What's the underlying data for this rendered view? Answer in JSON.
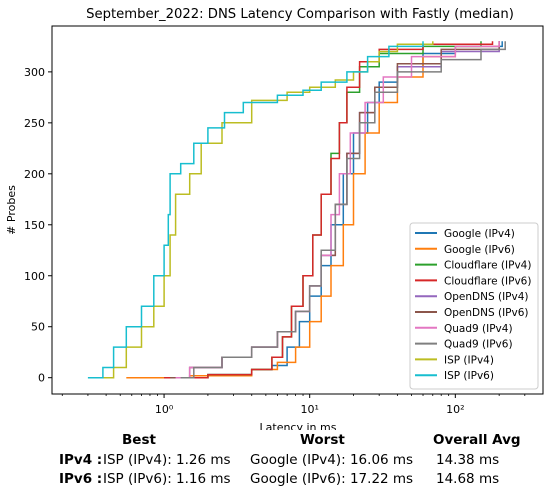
{
  "chart_data": {
    "type": "line",
    "title": "September_2022: DNS Latency Comparison with Fastly (median)",
    "xlabel": "Latency in ms",
    "ylabel": "# Probes",
    "xscale": "log",
    "xlim": [
      0.17,
      400
    ],
    "ylim": [
      -16,
      345
    ],
    "x_ticks": [
      {
        "value": 1,
        "label": "10⁰"
      },
      {
        "value": 10,
        "label": "10¹"
      },
      {
        "value": 100,
        "label": "10²"
      }
    ],
    "y_ticks": [
      0,
      50,
      100,
      150,
      200,
      250,
      300
    ],
    "grid": false,
    "legend_position": "lower right",
    "series": [
      {
        "name": "Google (IPv4)",
        "color": "#1f77b4",
        "points": [
          [
            1.2,
            0
          ],
          [
            2,
            3
          ],
          [
            4,
            8
          ],
          [
            5.5,
            12
          ],
          [
            7,
            30
          ],
          [
            8.5,
            55
          ],
          [
            10,
            80
          ],
          [
            12,
            110
          ],
          [
            14,
            150
          ],
          [
            17,
            200
          ],
          [
            20,
            240
          ],
          [
            25,
            270
          ],
          [
            30,
            290
          ],
          [
            40,
            305
          ],
          [
            60,
            318
          ],
          [
            100,
            325
          ],
          [
            210,
            330
          ]
        ]
      },
      {
        "name": "Google (IPv6)",
        "color": "#ff7f0e",
        "points": [
          [
            0.55,
            0
          ],
          [
            1.5,
            2
          ],
          [
            4,
            8
          ],
          [
            6,
            15
          ],
          [
            8,
            30
          ],
          [
            10,
            55
          ],
          [
            12,
            80
          ],
          [
            14,
            110
          ],
          [
            17,
            150
          ],
          [
            20,
            200
          ],
          [
            24,
            240
          ],
          [
            30,
            270
          ],
          [
            40,
            295
          ],
          [
            60,
            315
          ],
          [
            100,
            325
          ],
          [
            200,
            330
          ]
        ]
      },
      {
        "name": "Cloudflare (IPv4)",
        "color": "#2ca02c",
        "points": [
          [
            1,
            0
          ],
          [
            2,
            3
          ],
          [
            4,
            8
          ],
          [
            5.5,
            20
          ],
          [
            6.5,
            40
          ],
          [
            7.5,
            70
          ],
          [
            9,
            100
          ],
          [
            10.5,
            140
          ],
          [
            12,
            180
          ],
          [
            14,
            220
          ],
          [
            16,
            250
          ],
          [
            18,
            280
          ],
          [
            22,
            305
          ],
          [
            30,
            318
          ],
          [
            60,
            325
          ],
          [
            150,
            330
          ]
        ]
      },
      {
        "name": "Cloudflare (IPv6)",
        "color": "#d62728",
        "points": [
          [
            1,
            0
          ],
          [
            2,
            3
          ],
          [
            4,
            8
          ],
          [
            5.5,
            20
          ],
          [
            6.5,
            40
          ],
          [
            7.5,
            70
          ],
          [
            9,
            100
          ],
          [
            10.5,
            140
          ],
          [
            12,
            180
          ],
          [
            14,
            215
          ],
          [
            16,
            250
          ],
          [
            18,
            285
          ],
          [
            22,
            310
          ],
          [
            30,
            322
          ],
          [
            60,
            327
          ],
          [
            180,
            330
          ]
        ]
      },
      {
        "name": "OpenDNS (IPv4)",
        "color": "#9467bd",
        "points": [
          [
            1.2,
            0
          ],
          [
            1.5,
            10
          ],
          [
            2.5,
            20
          ],
          [
            4,
            30
          ],
          [
            6,
            45
          ],
          [
            8,
            65
          ],
          [
            10,
            90
          ],
          [
            12,
            120
          ],
          [
            15,
            170
          ],
          [
            18,
            220
          ],
          [
            22,
            260
          ],
          [
            28,
            285
          ],
          [
            40,
            305
          ],
          [
            80,
            320
          ],
          [
            200,
            330
          ]
        ]
      },
      {
        "name": "OpenDNS (IPv6)",
        "color": "#8c564b",
        "points": [
          [
            1.1,
            0
          ],
          [
            1.5,
            10
          ],
          [
            2.5,
            20
          ],
          [
            4,
            30
          ],
          [
            6,
            45
          ],
          [
            8,
            65
          ],
          [
            10,
            90
          ],
          [
            12,
            120
          ],
          [
            15,
            170
          ],
          [
            18,
            220
          ],
          [
            22,
            260
          ],
          [
            28,
            285
          ],
          [
            40,
            308
          ],
          [
            80,
            322
          ],
          [
            200,
            330
          ]
        ]
      },
      {
        "name": "Quad9 (IPv4)",
        "color": "#e377c2",
        "points": [
          [
            1.2,
            0
          ],
          [
            1.5,
            10
          ],
          [
            2.5,
            20
          ],
          [
            4,
            30
          ],
          [
            6,
            45
          ],
          [
            8,
            65
          ],
          [
            10,
            90
          ],
          [
            12,
            120
          ],
          [
            14,
            160
          ],
          [
            16,
            200
          ],
          [
            19,
            240
          ],
          [
            24,
            270
          ],
          [
            32,
            295
          ],
          [
            50,
            315
          ],
          [
            100,
            325
          ],
          [
            200,
            330
          ]
        ]
      },
      {
        "name": "Quad9 (IPv6)",
        "color": "#7f7f7f",
        "points": [
          [
            1.3,
            0
          ],
          [
            1.6,
            10
          ],
          [
            2.5,
            20
          ],
          [
            4,
            30
          ],
          [
            6,
            45
          ],
          [
            8,
            65
          ],
          [
            10,
            90
          ],
          [
            12,
            125
          ],
          [
            15,
            170
          ],
          [
            18,
            215
          ],
          [
            22,
            250
          ],
          [
            28,
            280
          ],
          [
            40,
            300
          ],
          [
            80,
            312
          ],
          [
            150,
            322
          ],
          [
            220,
            330
          ]
        ]
      },
      {
        "name": "ISP (IPv4)",
        "color": "#bcbd22",
        "points": [
          [
            0.35,
            0
          ],
          [
            0.45,
            10
          ],
          [
            0.55,
            30
          ],
          [
            0.7,
            50
          ],
          [
            0.85,
            70
          ],
          [
            1,
            100
          ],
          [
            1.1,
            140
          ],
          [
            1.2,
            180
          ],
          [
            1.5,
            200
          ],
          [
            1.8,
            230
          ],
          [
            2.5,
            250
          ],
          [
            4,
            272
          ],
          [
            7,
            280
          ],
          [
            10,
            285
          ],
          [
            15,
            292
          ],
          [
            20,
            300
          ],
          [
            25,
            310
          ],
          [
            30,
            320
          ],
          [
            40,
            327
          ],
          [
            70,
            330
          ]
        ]
      },
      {
        "name": "ISP (IPv6)",
        "color": "#17becf",
        "points": [
          [
            0.3,
            0
          ],
          [
            0.38,
            10
          ],
          [
            0.45,
            30
          ],
          [
            0.55,
            50
          ],
          [
            0.7,
            70
          ],
          [
            0.85,
            100
          ],
          [
            1,
            130
          ],
          [
            1.07,
            160
          ],
          [
            1.1,
            200
          ],
          [
            1.3,
            210
          ],
          [
            1.6,
            230
          ],
          [
            2,
            245
          ],
          [
            2.6,
            260
          ],
          [
            3.5,
            270
          ],
          [
            6,
            277
          ],
          [
            9,
            282
          ],
          [
            12,
            290
          ],
          [
            18,
            300
          ],
          [
            25,
            315
          ],
          [
            35,
            325
          ],
          [
            60,
            330
          ]
        ]
      }
    ]
  },
  "summary": {
    "headers": [
      "Best",
      "Worst",
      "Overall Avg"
    ],
    "rows": [
      {
        "label": "IPv4 :",
        "best": "ISP (IPv4): 1.26 ms",
        "worst": "Google (IPv4): 16.06 ms",
        "avg": "14.38 ms"
      },
      {
        "label": "IPv6 :",
        "best": "ISP (IPv6): 1.16 ms",
        "worst": "Google (IPv6): 17.22 ms",
        "avg": "14.68 ms"
      }
    ]
  }
}
